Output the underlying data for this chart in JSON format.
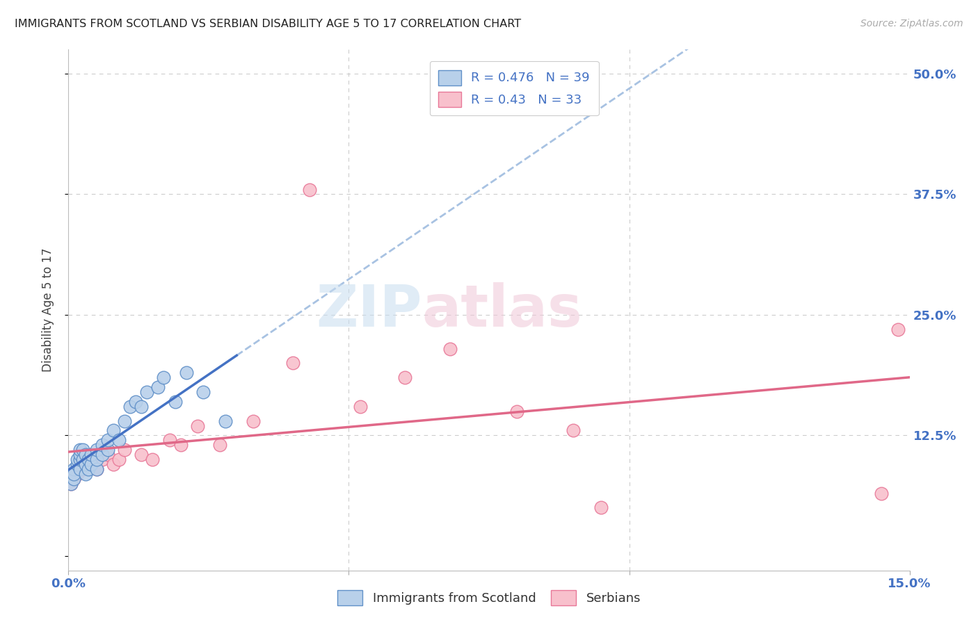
{
  "title": "IMMIGRANTS FROM SCOTLAND VS SERBIAN DISABILITY AGE 5 TO 17 CORRELATION CHART",
  "source": "Source: ZipAtlas.com",
  "ylabel": "Disability Age 5 to 17",
  "x_min": 0.0,
  "x_max": 0.15,
  "y_min": -0.015,
  "y_max": 0.525,
  "scotland_R": 0.476,
  "scotland_N": 39,
  "serbian_R": 0.43,
  "serbian_N": 33,
  "scotland_color": "#b8d0ea",
  "scotland_edge_color": "#6090c8",
  "scotland_line_color": "#4472c4",
  "scottland_dash_color": "#99b8dd",
  "serbian_color": "#f8c0cc",
  "serbian_edge_color": "#e87898",
  "serbian_line_color": "#e06888",
  "watermark_zip": "ZIP",
  "watermark_atlas": "atlas",
  "background_color": "#ffffff",
  "grid_color": "#cccccc",
  "scotland_x": [
    0.0005,
    0.001,
    0.001,
    0.001,
    0.0015,
    0.0015,
    0.002,
    0.002,
    0.002,
    0.002,
    0.0025,
    0.0025,
    0.003,
    0.003,
    0.003,
    0.0035,
    0.0035,
    0.004,
    0.004,
    0.005,
    0.005,
    0.005,
    0.006,
    0.006,
    0.007,
    0.007,
    0.008,
    0.009,
    0.01,
    0.011,
    0.012,
    0.013,
    0.014,
    0.016,
    0.017,
    0.019,
    0.021,
    0.024,
    0.028
  ],
  "scotland_y": [
    0.075,
    0.08,
    0.09,
    0.085,
    0.095,
    0.1,
    0.09,
    0.1,
    0.105,
    0.11,
    0.1,
    0.11,
    0.085,
    0.095,
    0.105,
    0.09,
    0.1,
    0.095,
    0.105,
    0.09,
    0.1,
    0.11,
    0.105,
    0.115,
    0.11,
    0.12,
    0.13,
    0.12,
    0.14,
    0.155,
    0.16,
    0.155,
    0.17,
    0.175,
    0.185,
    0.16,
    0.19,
    0.17,
    0.14
  ],
  "serbian_x": [
    0.0005,
    0.001,
    0.001,
    0.0015,
    0.002,
    0.002,
    0.0025,
    0.003,
    0.003,
    0.004,
    0.005,
    0.006,
    0.007,
    0.008,
    0.009,
    0.01,
    0.013,
    0.015,
    0.018,
    0.02,
    0.023,
    0.027,
    0.033,
    0.04,
    0.043,
    0.052,
    0.06,
    0.068,
    0.08,
    0.09,
    0.095,
    0.145,
    0.148
  ],
  "serbian_y": [
    0.075,
    0.08,
    0.085,
    0.085,
    0.09,
    0.095,
    0.09,
    0.095,
    0.1,
    0.105,
    0.09,
    0.1,
    0.105,
    0.095,
    0.1,
    0.11,
    0.105,
    0.1,
    0.12,
    0.115,
    0.135,
    0.115,
    0.14,
    0.2,
    0.38,
    0.155,
    0.185,
    0.215,
    0.15,
    0.13,
    0.05,
    0.065,
    0.235
  ]
}
